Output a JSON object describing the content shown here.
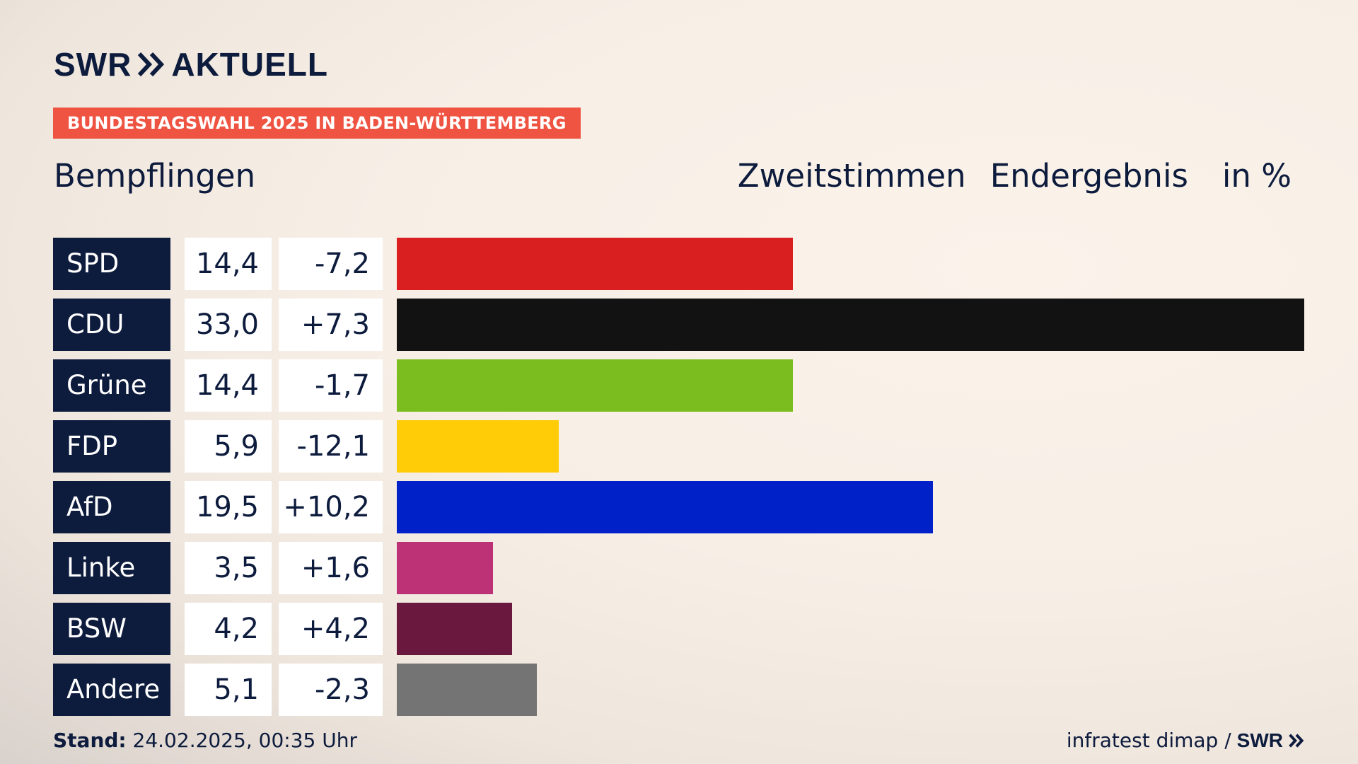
{
  "brand": {
    "logo_text": "SWR",
    "logo_text2": "AKTUELL",
    "footer_logo": "SWR",
    "icon": "double-chevron-icon"
  },
  "badge": "BUNDESTAGSWAHL 2025 IN BADEN-WÜRTTEMBERG",
  "location": "Bempflingen",
  "header": {
    "vote_type": "Zweitstimmen",
    "status": "Endergebnis",
    "unit": "in %"
  },
  "footer": {
    "stand_label": "Stand:",
    "stand_value": "24.02.2025, 00:35 Uhr",
    "source": "infratest dimap /"
  },
  "chart_data": {
    "type": "bar",
    "orientation": "horizontal",
    "categories": [
      "SPD",
      "CDU",
      "Grüne",
      "FDP",
      "AfD",
      "Linke",
      "BSW",
      "Andere"
    ],
    "values": [
      14.4,
      33.0,
      14.4,
      5.9,
      19.5,
      3.5,
      4.2,
      5.1
    ],
    "value_labels": [
      "14,4",
      "33,0",
      "14,4",
      "5,9",
      "19,5",
      "3,5",
      "4,2",
      "5,1"
    ],
    "diff_labels": [
      "-7,2",
      "+7,3",
      "-1,7",
      "-12,1",
      "+10,2",
      "+1,6",
      "+4,2",
      "-2,3"
    ],
    "diffs": [
      -7.2,
      7.3,
      -1.7,
      -12.1,
      10.2,
      1.6,
      4.2,
      -2.3
    ],
    "colors": [
      "#d91f1f",
      "#121212",
      "#7bbd1e",
      "#ffcc07",
      "#0020c8",
      "#bd3177",
      "#6a183d",
      "#747474"
    ],
    "xlim": [
      0,
      33.0
    ],
    "grid": false
  }
}
